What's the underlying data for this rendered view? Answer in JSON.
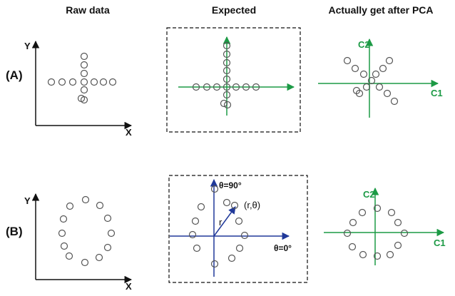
{
  "headers": {
    "raw": "Raw data",
    "expected": "Expected",
    "actual": "Actually get after PCA"
  },
  "rows": {
    "a": "(A)",
    "b": "(B)"
  },
  "axes": {
    "y": "Y",
    "x": "X",
    "c1": "C1",
    "c2": "C2"
  },
  "polar": {
    "theta90": "θ=90°",
    "theta0": "θ=0°",
    "r": "r",
    "point": "(r,θ)"
  },
  "colors": {
    "green": "#1c9a45",
    "blue": "#20399a",
    "ink": "#111111",
    "marker": "#555555"
  }
}
